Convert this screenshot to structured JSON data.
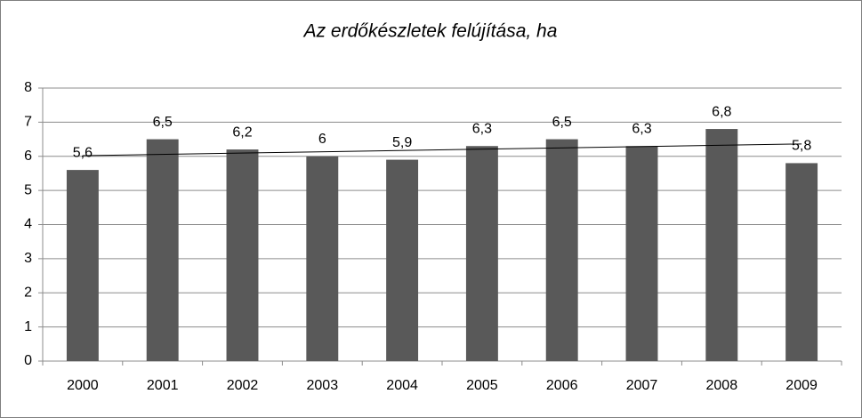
{
  "chart_data": {
    "type": "bar",
    "title": "Az erdőkészletek felújítása, ha",
    "categories": [
      "2000",
      "2001",
      "2002",
      "2003",
      "2004",
      "2005",
      "2006",
      "2007",
      "2008",
      "2009"
    ],
    "values": [
      5.6,
      6.5,
      6.2,
      6,
      5.9,
      6.3,
      6.5,
      6.3,
      6.8,
      5.8
    ],
    "value_labels": [
      "5,6",
      "6,5",
      "6,2",
      "6",
      "5,9",
      "6,3",
      "6,5",
      "6,3",
      "6,8",
      "5,8"
    ],
    "color": "#595959",
    "ylim": [
      0,
      8
    ],
    "yticks": [
      0,
      1,
      2,
      3,
      4,
      5,
      6,
      7,
      8
    ],
    "grid": true,
    "trendline": "linear"
  }
}
